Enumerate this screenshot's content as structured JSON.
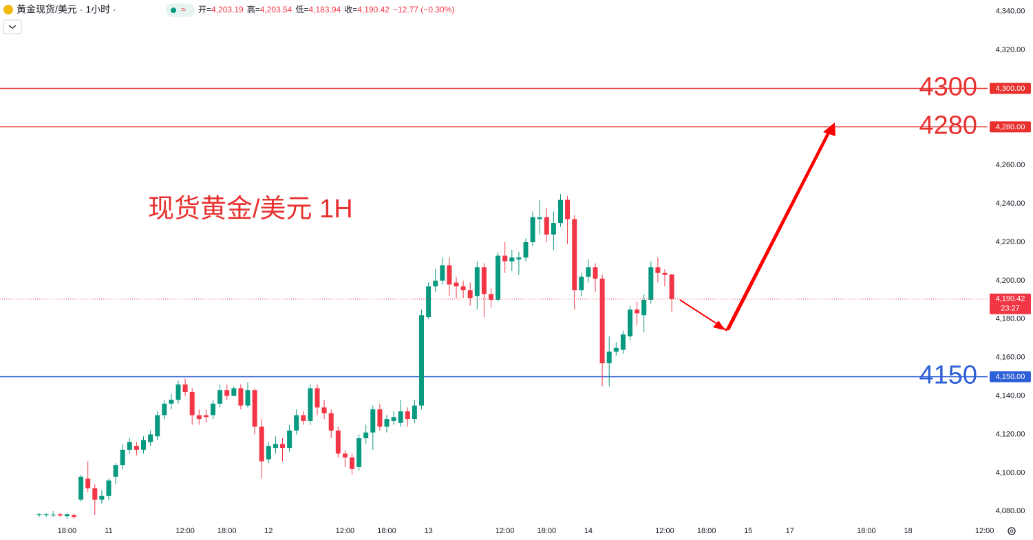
{
  "chart_data": {
    "type": "candlestick",
    "title": "黄金现货/美元 · 1小时 ·",
    "ohlc": [
      {
        "label": "开=",
        "value": "4,203.19"
      },
      {
        "label": "高=",
        "value": "4,203.54"
      },
      {
        "label": "低=",
        "value": "4,183.94"
      },
      {
        "label": "收=",
        "value": "4,190.42"
      }
    ],
    "change": "−12.77 (−0.30%)",
    "annotation": "现货黄金/美元 1H",
    "up_color": "#089981",
    "down_color": "#f23645",
    "categories": [
      null,
      null,
      null,
      null,
      "18:00",
      null,
      null,
      null,
      null,
      null,
      "11",
      null,
      null,
      null,
      null,
      null,
      null,
      null,
      null,
      null,
      null,
      "12:00",
      null,
      null,
      null,
      null,
      null,
      "18:00",
      null,
      null,
      null,
      null,
      null,
      "12",
      null,
      null,
      null,
      null,
      null,
      null,
      null,
      null,
      null,
      null,
      "12:00",
      null,
      null,
      null,
      null,
      null,
      "18:00",
      null,
      null,
      null,
      null,
      null,
      "13",
      null,
      null,
      null,
      null,
      null,
      null,
      null,
      null,
      null,
      null,
      "12:00",
      null,
      null,
      null,
      null,
      null,
      "18:00",
      null,
      null,
      null,
      null,
      null,
      "14",
      null,
      null,
      null,
      null,
      null,
      null,
      null,
      null,
      null,
      null,
      "12:00",
      null,
      null,
      null,
      null,
      null,
      "18:00",
      null,
      null,
      null,
      null,
      null,
      "15",
      null,
      null,
      null,
      null,
      null,
      "17",
      null,
      null,
      null,
      null,
      null,
      null,
      null,
      null,
      null,
      null,
      "18:00",
      null,
      null,
      null,
      null,
      null,
      "18",
      null,
      null,
      null,
      null,
      null,
      null,
      null,
      null,
      null,
      null,
      "12:00"
    ],
    "open": [
      4078,
      4078,
      4078,
      4078.5,
      4077.5,
      4078,
      4086,
      4097,
      4092,
      4086,
      4088,
      4098,
      4104,
      4112,
      4114,
      4112,
      4116,
      4119,
      4130,
      4136,
      4138,
      4146,
      4142,
      4130,
      4130,
      4130,
      4136,
      4143,
      4140,
      4144,
      4135,
      4143,
      4124,
      4107,
      4113,
      4115,
      4113,
      4122,
      4130,
      4127,
      4144,
      4134,
      4131,
      4122,
      4110,
      4108,
      4103,
      4118,
      4121,
      4133,
      4124,
      4127,
      4126,
      4132,
      4128,
      4135,
      4181,
      4197,
      4200,
      4208,
      4199,
      4197,
      4195,
      4192,
      4207,
      4193,
      4190,
      4213,
      4210,
      4211,
      4212,
      4220,
      4232,
      4233,
      4224,
      4230,
      4242,
      4232,
      4195,
      4202,
      4207,
      4201,
      4157,
      4163,
      4164,
      4171,
      4185,
      4182,
      4190,
      4207,
      4204,
      4203.19,
      null,
      null,
      null,
      null,
      null,
      null,
      null,
      null,
      null,
      null,
      null,
      null,
      null,
      null,
      null,
      null,
      null,
      null,
      null,
      null,
      null,
      null,
      null,
      null,
      null,
      null,
      null,
      null,
      null,
      null,
      null,
      null,
      null,
      null,
      null,
      null,
      null,
      null,
      null,
      null,
      null,
      null,
      null,
      null,
      null
    ],
    "high": [
      4079,
      4079,
      4080,
      4079,
      4079,
      4078.5,
      4099,
      4106,
      4094,
      4091,
      4097,
      4105,
      4115,
      4118,
      4116,
      4119,
      4122,
      4132,
      4138,
      4141,
      4148,
      4149,
      4144,
      4133,
      4133,
      4138,
      4146,
      4146,
      4145,
      4146,
      4147,
      4144,
      4128,
      4116,
      4119,
      4118,
      4125,
      4133,
      4132,
      4146,
      4146,
      4138,
      4133,
      4124,
      4112,
      4110,
      4120,
      4125,
      4135,
      4136,
      4130,
      4132,
      4138,
      4134,
      4138,
      4185,
      4199,
      4206,
      4212,
      4212,
      4202,
      4200,
      4199,
      4210,
      4209,
      4196,
      4215,
      4220,
      4216,
      4215,
      4222,
      4236,
      4242,
      4238,
      4236,
      4245,
      4244,
      4234,
      4204,
      4211,
      4209,
      4203,
      4171,
      4168,
      4174,
      4187,
      4189,
      4193,
      4210,
      4212,
      4206,
      4203.54,
      null,
      null,
      null,
      null,
      null,
      null,
      null,
      null,
      null,
      null,
      null,
      null,
      null,
      null,
      null,
      null,
      null,
      null,
      null,
      null,
      null,
      null,
      null,
      null,
      null,
      null,
      null,
      null,
      null,
      null,
      null,
      null,
      null,
      null,
      null,
      null,
      null,
      null,
      null,
      null,
      null,
      null,
      null,
      null,
      null
    ],
    "low": [
      4077,
      4077,
      4077,
      4077,
      4076,
      4076,
      4085,
      4090,
      4078,
      4084,
      4086,
      4094,
      4102,
      4110,
      4109,
      4110,
      4114,
      4117,
      4128,
      4133,
      4136,
      4140,
      4125,
      4125,
      4126,
      4128,
      4134,
      4138,
      4140,
      4133,
      4134,
      4120,
      4097,
      4105,
      4110,
      4106,
      4111,
      4120,
      4125,
      4125,
      4130,
      4128,
      4118,
      4108,
      4103,
      4099,
      4101,
      4115,
      4112,
      4122,
      4121,
      4125,
      4124,
      4124,
      4126,
      4133,
      4180,
      4194,
      4198,
      4192,
      4191,
      4191,
      4187,
      4185,
      4181,
      4186,
      4189,
      4204,
      4205,
      4203,
      4210,
      4218,
      4224,
      4220,
      4216,
      4228,
      4219,
      4185,
      4192,
      4199,
      4194,
      4145,
      4145,
      4161,
      4162,
      4169,
      4177,
      4173,
      4188,
      4199,
      4197,
      4183.94,
      null,
      null,
      null,
      null,
      null,
      null,
      null,
      null,
      null,
      null,
      null,
      null,
      null,
      null,
      null,
      null,
      null,
      null,
      null,
      null,
      null,
      null,
      null,
      null,
      null,
      null,
      null,
      null,
      null,
      null,
      null,
      null,
      null,
      null,
      null,
      null,
      null,
      null,
      null,
      null,
      null,
      null,
      null,
      null,
      null
    ],
    "close": [
      4078.5,
      4078.5,
      4078.2,
      4077.8,
      4078.5,
      4077,
      4098,
      4092,
      4086,
      4088,
      4096,
      4104,
      4112,
      4116,
      4112,
      4117,
      4120,
      4130,
      4136,
      4138,
      4146,
      4142,
      4130,
      4128,
      4129,
      4136,
      4143,
      4140,
      4144,
      4135,
      4143,
      4124,
      4106,
      4114,
      4115,
      4113,
      4122,
      4130,
      4127,
      4144,
      4134,
      4131,
      4122,
      4110,
      4108,
      4102,
      4118,
      4121,
      4133,
      4124,
      4128,
      4129,
      4132,
      4128,
      4135,
      4182,
      4197,
      4200,
      4208,
      4198,
      4197,
      4195,
      4191,
      4207,
      4193,
      4190,
      4213,
      4210,
      4212,
      4212,
      4220,
      4233,
      4233,
      4224,
      4230,
      4242,
      4232,
      4195,
      4202,
      4207,
      4201,
      4157,
      4163,
      4165,
      4172,
      4185,
      4183,
      4190,
      4207,
      4204,
      4203,
      4190.42,
      null,
      null,
      null,
      null,
      null,
      null,
      null,
      null,
      null,
      null,
      null,
      null,
      null,
      null,
      null,
      null,
      null,
      null,
      null,
      null,
      null,
      null,
      null,
      null,
      null,
      null,
      null,
      null,
      null,
      null,
      null,
      null,
      null,
      null,
      null,
      null,
      null,
      null,
      null,
      null,
      null,
      null,
      null,
      null,
      null
    ],
    "ylim": [
      4074,
      4346
    ],
    "yticks": [
      {
        "value": 4080,
        "label": "4,080.00"
      },
      {
        "value": 4100,
        "label": "4,100.00"
      },
      {
        "value": 4120,
        "label": "4,120.00"
      },
      {
        "value": 4140,
        "label": "4,140.00"
      },
      {
        "value": 4160,
        "label": "4,160.00"
      },
      {
        "value": 4180,
        "label": "4,180.00"
      },
      {
        "value": 4200,
        "label": "4,200.00"
      },
      {
        "value": 4220,
        "label": "4,220.00"
      },
      {
        "value": 4240,
        "label": "4,240.00"
      },
      {
        "value": 4260,
        "label": "4,260.00"
      },
      {
        "value": 4280,
        "label": "4,280.00"
      },
      {
        "value": 4300,
        "label": "4,300.00"
      },
      {
        "value": 4320,
        "label": "4,320.00"
      },
      {
        "value": 4340,
        "label": "4,340.00"
      }
    ],
    "grid": false,
    "levels": [
      {
        "value": 4300,
        "label": "4300",
        "tag": "4,300.00",
        "color": "#e8312f"
      },
      {
        "value": 4280,
        "label": "4280",
        "tag": "4,280.00",
        "color": "#e8312f"
      },
      {
        "value": 4150,
        "label": "4150",
        "tag": "4,150.00",
        "color": "#2d5fd8"
      }
    ],
    "last": {
      "value": 4190.42,
      "label": "4,190.42",
      "countdown": "23:27",
      "color": "#f23645"
    }
  }
}
